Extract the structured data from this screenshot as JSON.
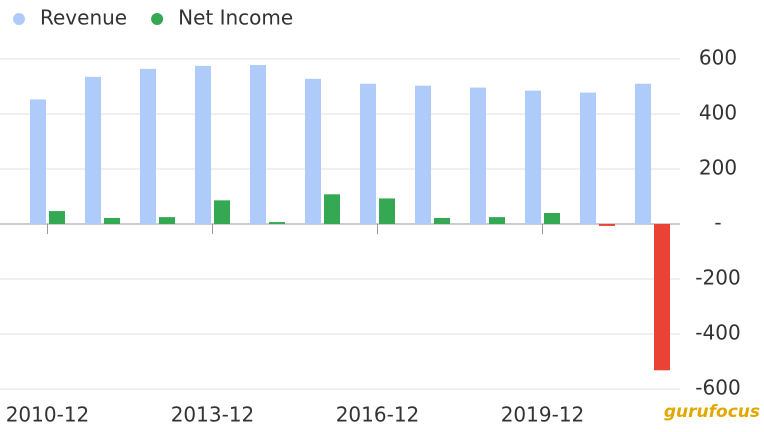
{
  "chart_data": {
    "type": "bar",
    "categories": [
      "2010-12",
      null,
      null,
      "2013-12",
      null,
      null,
      "2016-12",
      null,
      null,
      "2019-12",
      null,
      null
    ],
    "series": [
      {
        "name": "Revenue",
        "color": "#aecbfa",
        "values": [
          453,
          535,
          564,
          575,
          578,
          528,
          510,
          503,
          496,
          485,
          478,
          510
        ]
      },
      {
        "name": "Net Income",
        "color": "#34a853",
        "negative_color": "#ea4335",
        "values": [
          47,
          22,
          25,
          86,
          7,
          108,
          93,
          22,
          25,
          40,
          -7,
          -532
        ]
      }
    ],
    "ylim": [
      -600,
      600
    ],
    "yticks": [
      600,
      400,
      200,
      {
        "value": 0,
        "label": "-"
      },
      -200,
      -400,
      -600
    ],
    "y_axis_side": "right",
    "grid": true,
    "legend": "top",
    "watermark": "gurufocus"
  }
}
